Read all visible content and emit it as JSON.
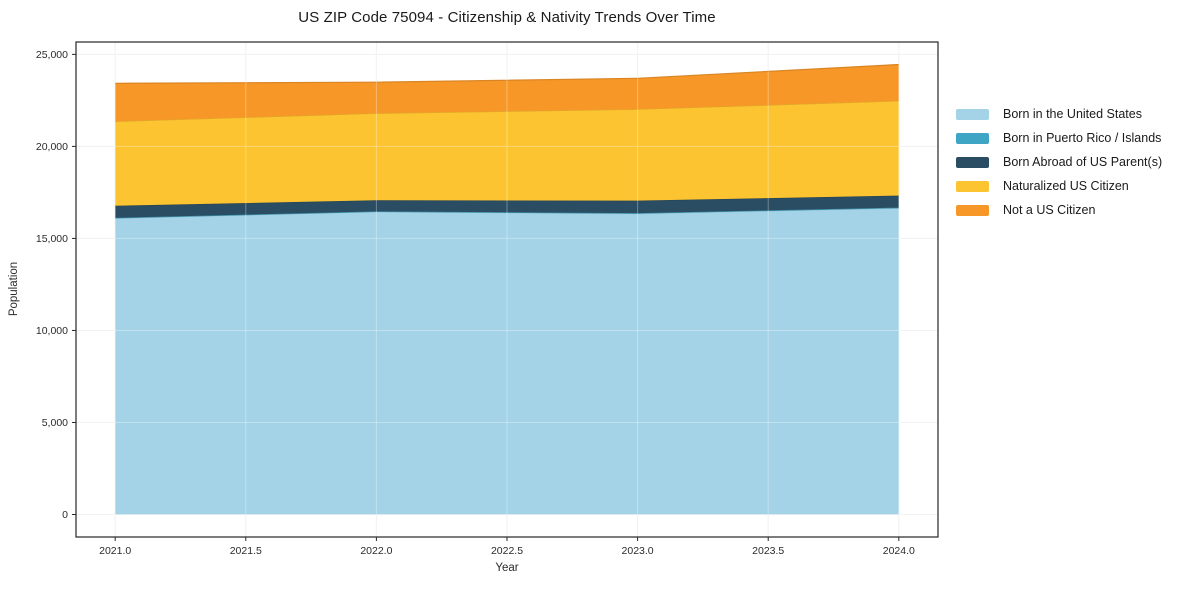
{
  "figure": {
    "background": "#ffffff"
  },
  "chart_data": {
    "type": "area",
    "stacked": true,
    "title": "US ZIP Code 75094 - Citizenship & Nativity Trends Over Time",
    "xlabel": "Year",
    "ylabel": "Population",
    "x": [
      2021,
      2022,
      2023,
      2024
    ],
    "series": [
      {
        "name": "Born in the United States",
        "color": "#a4d3e8",
        "values": [
          16100,
          16450,
          16350,
          16650
        ]
      },
      {
        "name": "Born in Puerto Rico / Islands",
        "color": "#3fa5c5",
        "values": [
          20,
          20,
          25,
          25
        ]
      },
      {
        "name": "Born Abroad of US Parent(s)",
        "color": "#2b4d63",
        "values": [
          650,
          600,
          680,
          650
        ]
      },
      {
        "name": "Naturalized US Citizen",
        "color": "#fcc430",
        "values": [
          4590,
          4730,
          4965,
          5145
        ]
      },
      {
        "name": "Not a US Citizen",
        "color": "#f79728",
        "values": [
          2070,
          1690,
          1680,
          1980
        ]
      }
    ],
    "totals_by_year": [
      23430,
      23490,
      23700,
      24450
    ],
    "xlim": [
      2020.85,
      2024.15
    ],
    "ylim": [
      -1222,
      25672
    ],
    "x_ticks": {
      "values": [
        2021.0,
        2021.5,
        2022.0,
        2022.5,
        2023.0,
        2023.5,
        2024.0
      ],
      "labels": [
        "2021.0",
        "2021.5",
        "2022.0",
        "2022.5",
        "2023.0",
        "2023.5",
        "2024.0"
      ]
    },
    "y_ticks": {
      "values": [
        0,
        5000,
        10000,
        15000,
        20000,
        25000
      ],
      "labels": [
        "0",
        "5,000",
        "10,000",
        "15,000",
        "20,000",
        "25,000"
      ]
    },
    "grid": true,
    "legend_position": "right-outside"
  },
  "style": {
    "grid_color": "#ececec",
    "grid_overlay_color": "rgba(255,255,255,0.32)",
    "spine_color": "#262626",
    "tick_color": "#262626",
    "tick_label_color": "#2b2b2b",
    "title_color": "#1a1a1a"
  }
}
